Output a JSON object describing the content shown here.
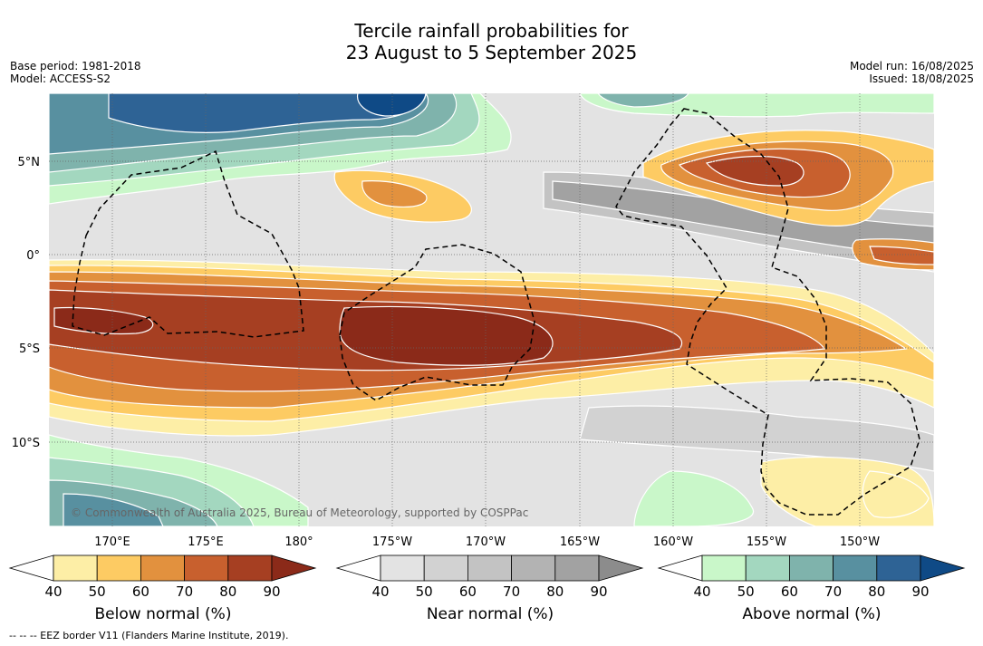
{
  "title": {
    "line1": "Tercile rainfall probabilities for",
    "line2": "23 August to 5 September 2025"
  },
  "meta": {
    "base_period": "Base period: 1981-2018",
    "model": "Model: ACCESS-S2",
    "model_run": "Model run: 16/08/2025",
    "issued": "Issued: 18/08/2025"
  },
  "map": {
    "copyright": "© Commonwealth of Australia 2025, Bureau of Meteorology, supported by COSPPac",
    "lat_labels": [
      "5°N",
      "0°",
      "5°S",
      "10°S"
    ],
    "lon_labels": [
      "170°E",
      "175°E",
      "180°",
      "175°W",
      "170°W",
      "165°W",
      "160°W",
      "155°W",
      "150°W"
    ],
    "colors": {
      "below": [
        "#fdeea6",
        "#fdcb63",
        "#e2913e",
        "#c8602e",
        "#a63f22",
        "#8b2a19"
      ],
      "near": [
        "#e3e3e3",
        "#d2d2d2",
        "#c3c3c3",
        "#b3b3b3",
        "#a2a2a2",
        "#8c8c8c"
      ],
      "above": [
        "#c9f7c9",
        "#a3d7bf",
        "#7fb3ac",
        "#5890a0",
        "#2e6395",
        "#0f4a86"
      ]
    }
  },
  "colorbars": [
    {
      "label": "Below normal (%)",
      "ticks": [
        "40",
        "50",
        "60",
        "70",
        "80",
        "90"
      ]
    },
    {
      "label": "Near normal (%)",
      "ticks": [
        "40",
        "50",
        "60",
        "70",
        "80",
        "90"
      ]
    },
    {
      "label": "Above normal (%)",
      "ticks": [
        "40",
        "50",
        "60",
        "70",
        "80",
        "90"
      ]
    }
  ],
  "footer": "--  --  -- EEZ border V11 (Flanders Marine Institute, 2019)."
}
